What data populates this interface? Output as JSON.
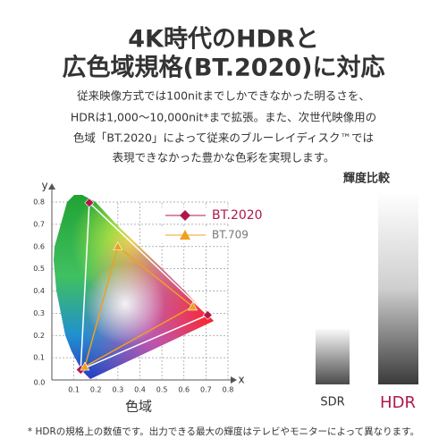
{
  "title": [
    "4K時代のHDRと",
    "広色域規格(BT.2020)に対応"
  ],
  "body": [
    "従来映像方式では100nitまでしかできなかった明るさを、",
    "HDRは1,000〜10,000nit*まで拡張。また、次世代映像用の",
    "色域「BT.2020」によって従来のブルーレイディスク™では",
    "表現できなかった豊かな色彩を実現します。"
  ],
  "gamut": {
    "x_label": "x",
    "y_label": "y",
    "caption": "色域",
    "origin_label": "0.0",
    "xlim": [
      0,
      0.8
    ],
    "ylim": [
      0,
      0.8
    ],
    "xticks": [
      0.1,
      0.2,
      0.3,
      0.4,
      0.5,
      0.6,
      0.7,
      0.8
    ],
    "yticks": [
      0.1,
      0.2,
      0.3,
      0.4,
      0.5,
      0.6,
      0.7,
      0.8
    ],
    "series": [
      {
        "name": "BT.2020",
        "color": "#b0184a",
        "x": [
          0.708,
          0.17,
          0.131
        ],
        "y": [
          0.292,
          0.797,
          0.046
        ]
      },
      {
        "name": "BT.709",
        "color": "#f0a020",
        "x": [
          0.64,
          0.3,
          0.15
        ],
        "y": [
          0.33,
          0.6,
          0.06
        ]
      }
    ]
  },
  "brightness": {
    "title": "輝度比較",
    "labels": [
      "SDR",
      "HDR"
    ]
  },
  "footnote": "* HDRの規格上の数値です。出力できる最大の輝度はテレビやモニターによって異なります。"
}
